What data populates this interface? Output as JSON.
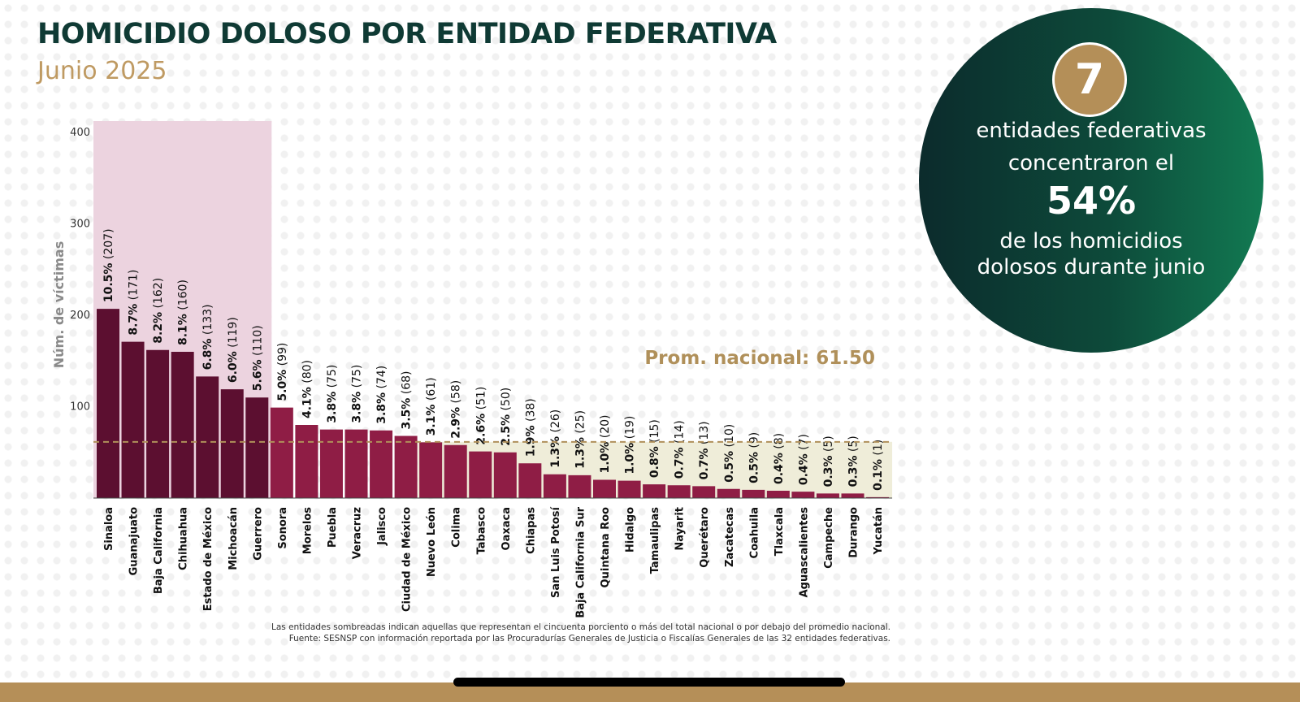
{
  "header": {
    "title": "HOMICIDIO DOLOSO POR ENTIDAD FEDERATIVA",
    "subtitle": "Junio 2025"
  },
  "summary": {
    "count": "7",
    "line1": "entidades federativas",
    "line2": "concentraron el",
    "percent": "54%",
    "line3": "de los homicidios",
    "line4": "dolosos durante junio"
  },
  "footnotes": {
    "line1": "Las entidades sombreadas indican aquellas que representan el cincuenta porciento o más del total nacional o por debajo del promedio nacional.",
    "line2": "Fuente: SESNSP con información reportada por las Procuradurías Generales de Justicia o Fiscalías Generales de las 32 entidades federativas."
  },
  "colors": {
    "top_bar": "#5c0f30",
    "bar": "#8f1d45",
    "top_shade": "#ecd3df",
    "below_avg_shade": "#efedd9",
    "average_line": "#b0905a",
    "title": "#0f3a34",
    "accent_gold": "#bf9a62"
  },
  "chart_data": {
    "type": "bar",
    "ylabel": "Núm. de víctimas",
    "yticks": [
      100,
      200,
      300,
      400
    ],
    "ylim": [
      0,
      400
    ],
    "average_label": "Prom. nacional: 61.50",
    "average": 61.5,
    "highlighted_count": 7,
    "categories": [
      "Sinaloa",
      "Guanajuato",
      "Baja California",
      "Chihuahua",
      "Estado de México",
      "Michoacán",
      "Guerrero",
      "Sonora",
      "Morelos",
      "Puebla",
      "Veracruz",
      "Jalisco",
      "Ciudad de México",
      "Nuevo León",
      "Colima",
      "Tabasco",
      "Oaxaca",
      "Chiapas",
      "San Luis Potosí",
      "Baja California Sur",
      "Quintana Roo",
      "Hidalgo",
      "Tamaulipas",
      "Nayarit",
      "Querétaro",
      "Zacatecas",
      "Coahuila",
      "Tlaxcala",
      "Aguascalientes",
      "Campeche",
      "Durango",
      "Yucatán"
    ],
    "values": [
      207,
      171,
      162,
      160,
      133,
      119,
      110,
      99,
      80,
      75,
      75,
      74,
      68,
      61,
      58,
      51,
      50,
      38,
      26,
      25,
      20,
      19,
      15,
      14,
      13,
      10,
      9,
      8,
      7,
      5,
      5,
      1
    ],
    "percent_labels": [
      "10.5%",
      "8.7%",
      "8.2%",
      "8.1%",
      "6.8%",
      "6.0%",
      "5.6%",
      "5.0%",
      "4.1%",
      "3.8%",
      "3.8%",
      "3.8%",
      "3.5%",
      "3.1%",
      "2.9%",
      "2.6%",
      "2.5%",
      "1.9%",
      "1.3%",
      "1.3%",
      "1.0%",
      "1.0%",
      "0.8%",
      "0.7%",
      "0.7%",
      "0.5%",
      "0.5%",
      "0.4%",
      "0.4%",
      "0.3%",
      "0.3%",
      "0.1%"
    ],
    "count_labels": [
      "(207)",
      "(171)",
      "(162)",
      "(160)",
      "(133)",
      "(119)",
      "(110)",
      "(99)",
      "(80)",
      "(75)",
      "(75)",
      "(74)",
      "(68)",
      "(61)",
      "(58)",
      "(51)",
      "(50)",
      "(38)",
      "(26)",
      "(25)",
      "(20)",
      "(19)",
      "(15)",
      "(14)",
      "(13)",
      "(10)",
      "(9)",
      "(8)",
      "(7)",
      "(5)",
      "(5)",
      "(1)"
    ]
  }
}
